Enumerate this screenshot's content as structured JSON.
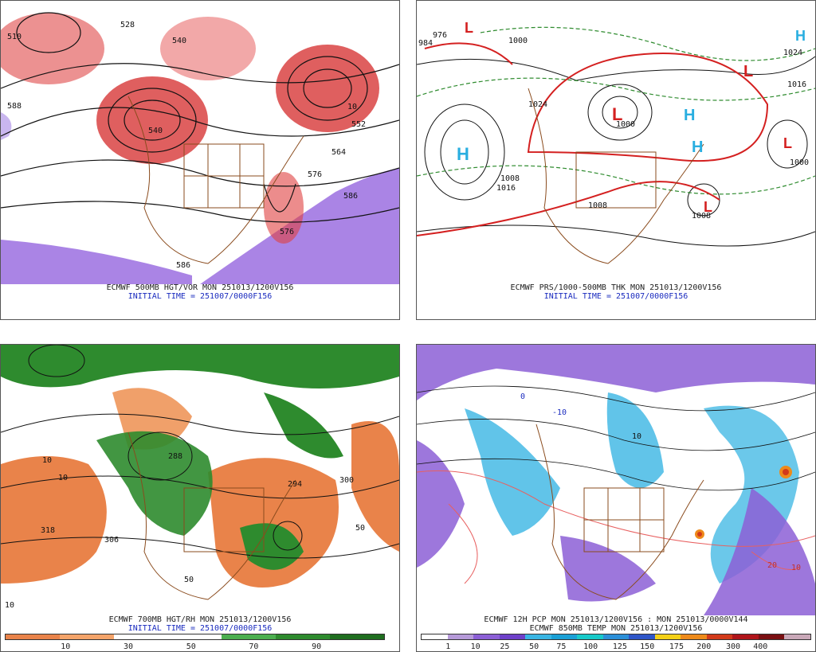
{
  "panels": [
    {
      "id": "p1",
      "caption": "ECMWF 500MB HGT/VOR MON 251013/1200V156",
      "initial": "INITIAL TIME = 251007/0000F156",
      "labels": [
        "510",
        "528",
        "540",
        "540",
        "552",
        "564",
        "576",
        "586",
        "576",
        "586",
        "10",
        "588"
      ]
    },
    {
      "id": "p2",
      "caption": "ECMWF PRS/1000-500MB THK MON 251013/1200V156",
      "initial": "INITIAL TIME = 251007/0000F156",
      "labels": [
        "1000",
        "1024",
        "1008",
        "1016",
        "1000",
        "1008",
        "1024",
        "1016",
        "1008",
        "1000",
        "976",
        "984"
      ]
    },
    {
      "id": "p3",
      "caption": "ECMWF 700MB HGT/RH MON 251013/1200V156",
      "initial": "INITIAL TIME = 251007/0000F156",
      "labels": [
        "318",
        "306",
        "300",
        "294",
        "288",
        "10",
        "10",
        "50",
        "10",
        "50"
      ],
      "scale_colors": [
        "#e9834a",
        "#f4a46a",
        "#ffffff",
        "#ffffff",
        "#4caf50",
        "#2e8b2e",
        "#1f6e1f"
      ],
      "scale_ticks": [
        "10",
        "30",
        "50",
        "70",
        "90"
      ]
    },
    {
      "id": "p4",
      "caption": "ECMWF 12H PCP MON 251013/1200V156 : MON 251013/0000V144",
      "caption2": "ECMWF 850MB TEMP MON 251013/1200V156",
      "labels": [
        "10",
        "20",
        "10",
        "0",
        "-10"
      ],
      "scale_colors": [
        "#ffffff",
        "#b69ad9",
        "#8c5fd6",
        "#6e40c9",
        "#39b5e3",
        "#1aa0d6",
        "#17c9c9",
        "#2b8fd8",
        "#2e55c8",
        "#f3d017",
        "#ee8a1a",
        "#d23a1a",
        "#b0151a",
        "#7a0f12",
        "#c9a8b8"
      ],
      "scale_ticks": [
        "1",
        "10",
        "25",
        "50",
        "75",
        "100",
        "125",
        "150",
        "175",
        "200",
        "300",
        "400"
      ]
    }
  ]
}
